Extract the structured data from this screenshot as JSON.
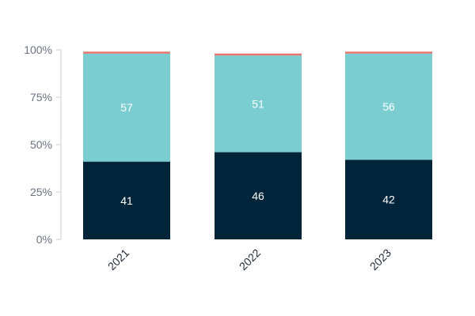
{
  "chart_data": {
    "type": "bar",
    "stacked": true,
    "categories": [
      "2021",
      "2022",
      "2023"
    ],
    "series": [
      {
        "values": [
          41,
          46,
          42
        ],
        "color": "#002439",
        "label_color": "#ffffff"
      },
      {
        "values": [
          57,
          51,
          56
        ],
        "color": "#7acdd0",
        "label_color": "#ffffff"
      },
      {
        "values": [
          1,
          1,
          1
        ],
        "color": "#e8726b"
      }
    ],
    "y_ticks": [
      "0%",
      "25%",
      "50%",
      "75%",
      "100%"
    ],
    "ylim": [
      0,
      100
    ],
    "grid": false,
    "legend": "none"
  }
}
